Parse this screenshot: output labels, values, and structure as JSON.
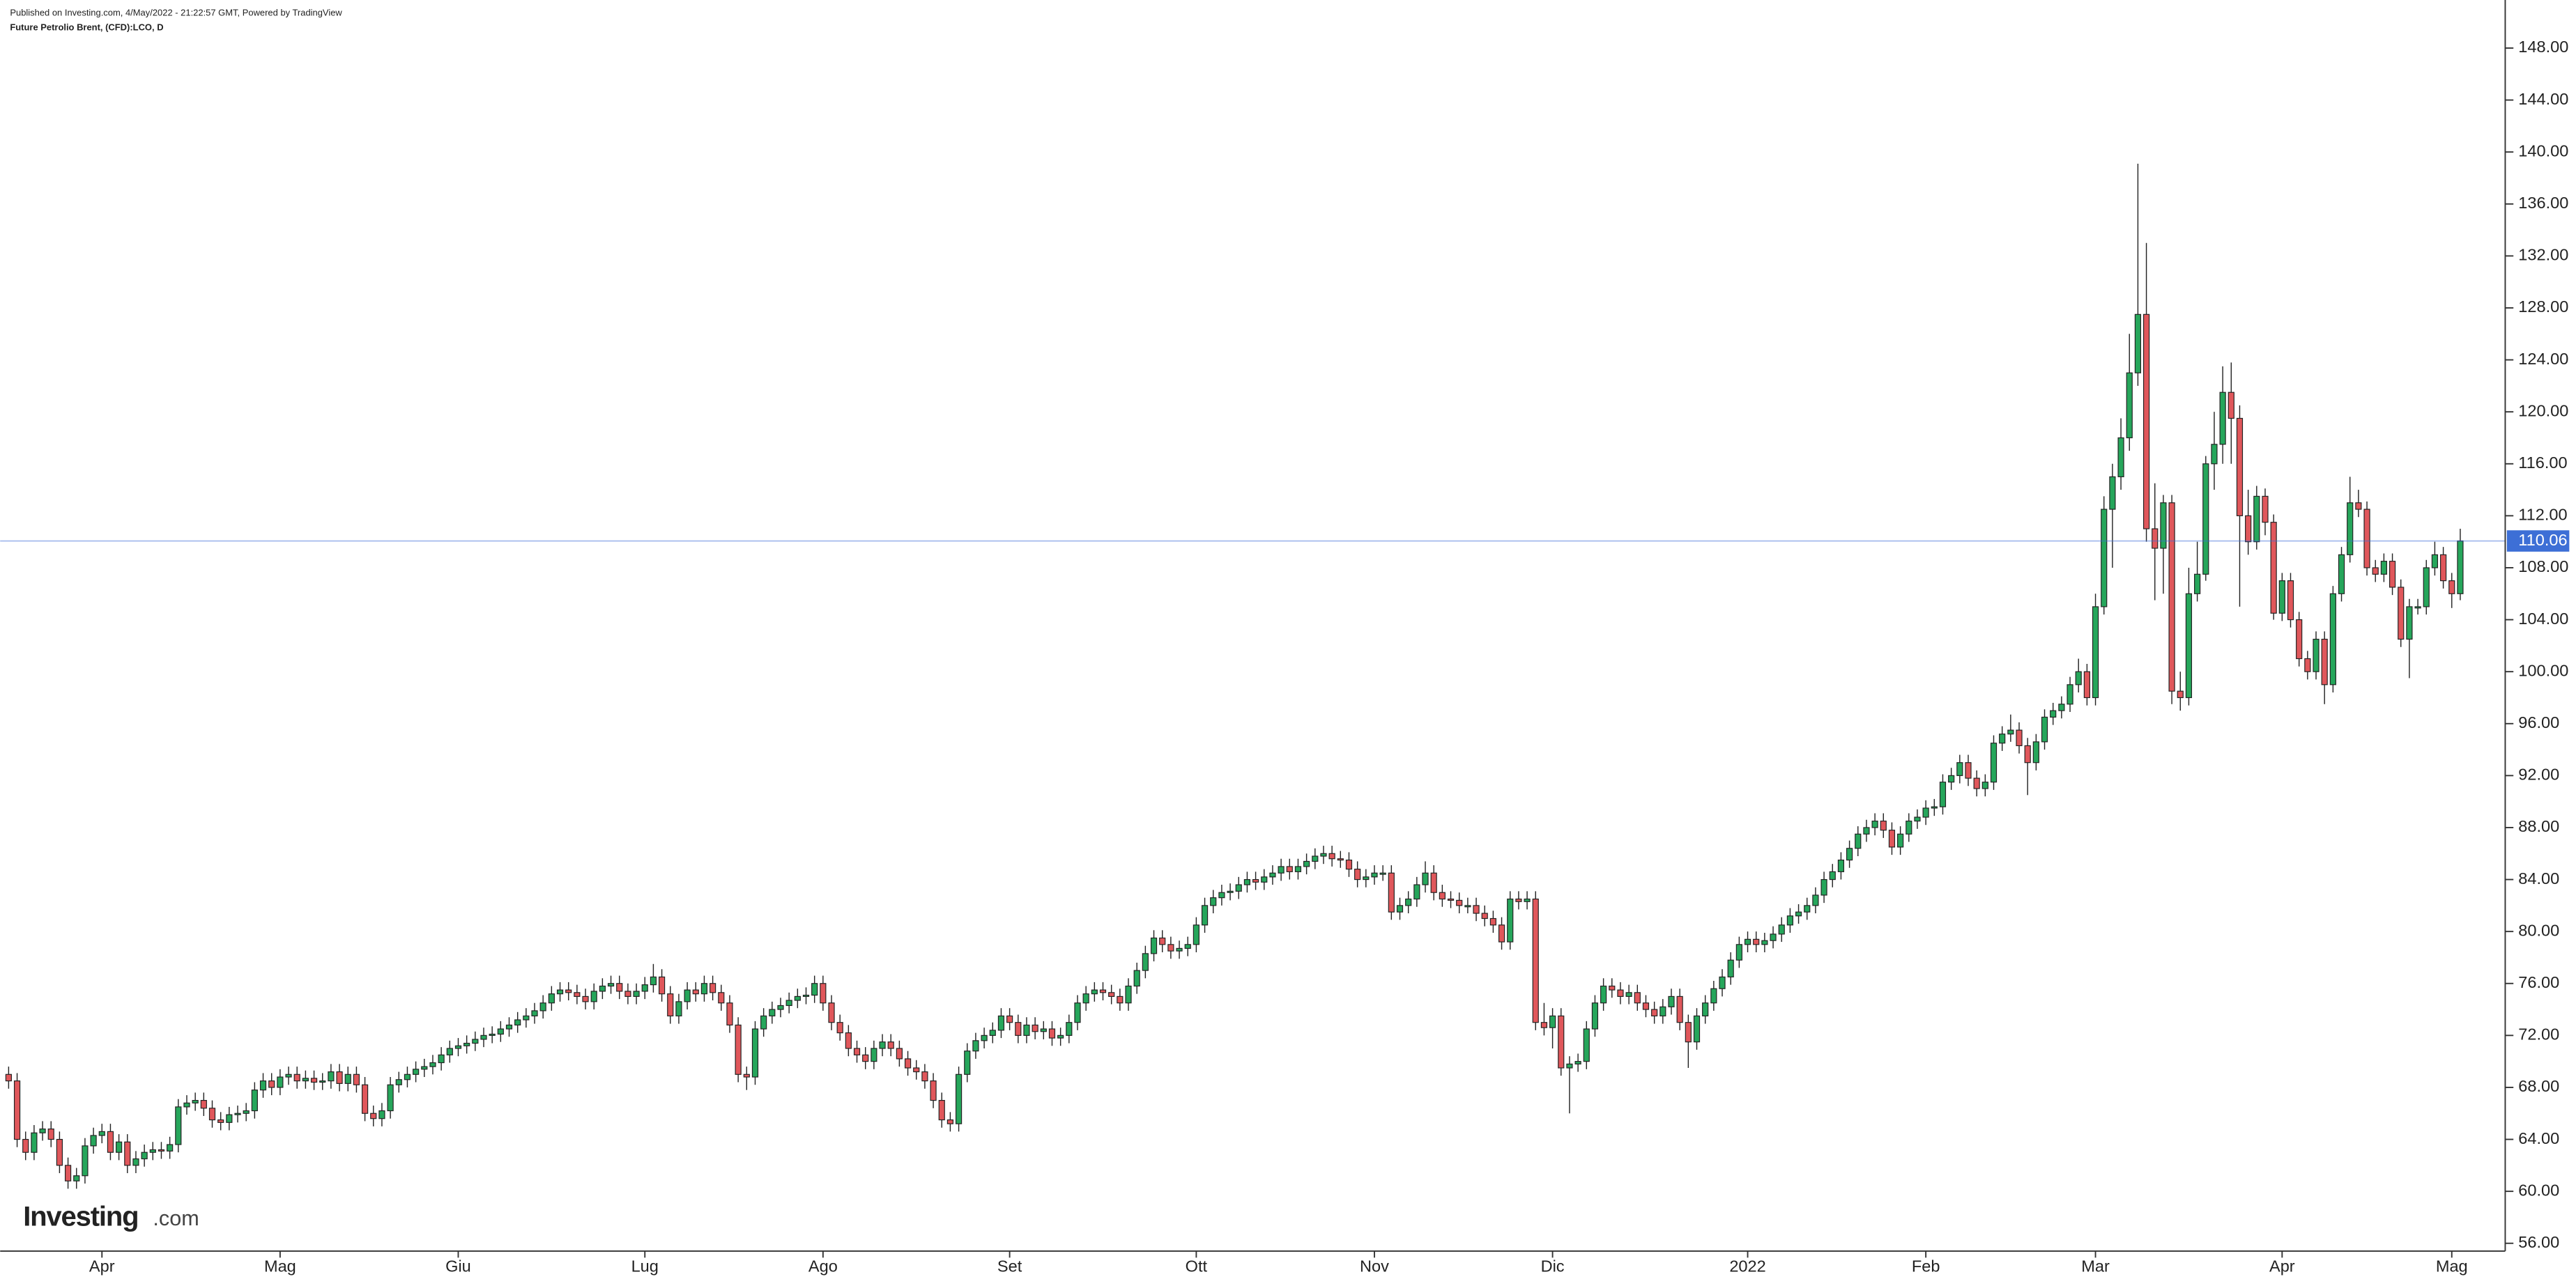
{
  "header": "Published on Investing.com, 4/May/2022 - 21:22:57 GMT, Powered by TradingView",
  "branding": {
    "brand": "Investing",
    "suffix": ".com"
  },
  "chart_data": {
    "type": "candlestick",
    "title": "Future Petrolio Brent, (CFD):LCO, D",
    "up_color": "#26a65b",
    "down_color": "#e0575b",
    "last_price_color": "#3d6fd6",
    "xlim": [
      -1,
      294.3
    ],
    "xticks": [
      {
        "value": 11,
        "label": "Apr"
      },
      {
        "value": 32,
        "label": "Mag"
      },
      {
        "value": 53,
        "label": "Giu"
      },
      {
        "value": 75,
        "label": "Lug"
      },
      {
        "value": 96,
        "label": "Ago"
      },
      {
        "value": 118,
        "label": "Set"
      },
      {
        "value": 140,
        "label": "Ott"
      },
      {
        "value": 161,
        "label": "Nov"
      },
      {
        "value": 182,
        "label": "Dic"
      },
      {
        "value": 205,
        "label": "2022"
      },
      {
        "value": 226,
        "label": "Feb"
      },
      {
        "value": 246,
        "label": "Mar"
      },
      {
        "value": 268,
        "label": "Apr"
      },
      {
        "value": 288,
        "label": "Mag"
      }
    ],
    "ylim": [
      55.4,
      151.7
    ],
    "yticks": [
      {
        "value": 56,
        "label": "56.00"
      },
      {
        "value": 60,
        "label": "60.00"
      },
      {
        "value": 64,
        "label": "64.00"
      },
      {
        "value": 68,
        "label": "68.00"
      },
      {
        "value": 72,
        "label": "72.00"
      },
      {
        "value": 76,
        "label": "76.00"
      },
      {
        "value": 80,
        "label": "80.00"
      },
      {
        "value": 84,
        "label": "84.00"
      },
      {
        "value": 88,
        "label": "88.00"
      },
      {
        "value": 92,
        "label": "92.00"
      },
      {
        "value": 96,
        "label": "96.00"
      },
      {
        "value": 100,
        "label": "100.00"
      },
      {
        "value": 104,
        "label": "104.00"
      },
      {
        "value": 108,
        "label": "108.00"
      },
      {
        "value": 112,
        "label": "112.00"
      },
      {
        "value": 116,
        "label": "116.00"
      },
      {
        "value": 120,
        "label": "120.00"
      },
      {
        "value": 124,
        "label": "124.00"
      },
      {
        "value": 128,
        "label": "128.00"
      },
      {
        "value": 132,
        "label": "132.00"
      },
      {
        "value": 136,
        "label": "136.00"
      },
      {
        "value": 140,
        "label": "140.00"
      },
      {
        "value": 144,
        "label": "144.00"
      },
      {
        "value": 148,
        "label": "148.00"
      }
    ],
    "open": [
      69.0,
      68.5,
      64.0,
      63.0,
      64.5,
      64.8,
      64.0,
      62.0,
      60.8,
      61.2,
      63.5,
      64.3,
      64.6,
      63.0,
      63.8,
      62.0,
      62.5,
      63.0,
      63.2,
      63.1,
      63.6,
      66.5,
      66.8,
      67.0,
      66.4,
      65.5,
      65.3,
      65.9,
      66.0,
      66.2,
      67.8,
      68.5,
      68.0,
      68.8,
      69.0,
      68.5,
      68.7,
      68.4,
      68.5,
      69.2,
      68.3,
      69.0,
      68.2,
      66.0,
      65.6,
      66.2,
      68.2,
      68.6,
      69.0,
      69.4,
      69.6,
      69.9,
      70.5,
      71.0,
      71.2,
      71.4,
      71.7,
      72.0,
      72.1,
      72.5,
      72.8,
      73.2,
      73.5,
      73.9,
      74.5,
      75.2,
      75.5,
      75.3,
      75.0,
      74.6,
      75.4,
      75.8,
      76.0,
      75.4,
      75.0,
      75.4,
      75.9,
      76.5,
      75.2,
      73.5,
      74.6,
      75.5,
      75.2,
      76.0,
      75.3,
      74.5,
      72.8,
      69.0,
      68.8,
      72.5,
      73.5,
      74.0,
      74.3,
      74.7,
      75.0,
      75.1,
      76.0,
      74.5,
      73.0,
      72.2,
      71.0,
      70.5,
      70.0,
      71.0,
      71.5,
      71.0,
      70.2,
      69.5,
      69.2,
      68.5,
      67.0,
      65.5,
      65.2,
      69.0,
      70.8,
      71.6,
      72.0,
      72.4,
      73.5,
      73.0,
      72.0,
      72.8,
      72.3,
      72.5,
      71.8,
      72.0,
      73.0,
      74.5,
      75.2,
      75.5,
      75.3,
      75.0,
      74.5,
      75.8,
      77.0,
      78.3,
      79.5,
      79.0,
      78.5,
      78.7,
      79.0,
      80.5,
      82.0,
      82.6,
      83.0,
      83.1,
      83.6,
      84.0,
      83.8,
      84.2,
      84.5,
      85.0,
      84.6,
      85.0,
      85.4,
      85.8,
      86.0,
      85.6,
      85.5,
      84.8,
      84.0,
      84.2,
      84.5,
      84.5,
      81.5,
      82.0,
      82.5,
      83.6,
      84.5,
      83.0,
      82.5,
      82.4,
      82.0,
      82.0,
      81.4,
      81.0,
      80.5,
      79.2,
      82.5,
      82.3,
      82.5,
      73.0,
      72.6,
      73.5,
      69.5,
      69.8,
      70.0,
      72.5,
      74.5,
      75.8,
      75.5,
      75.0,
      75.3,
      74.5,
      74.0,
      73.5,
      74.2,
      75.0,
      73.0,
      71.5,
      73.5,
      74.5,
      75.6,
      76.5,
      77.8,
      79.0,
      79.4,
      79.0,
      79.3,
      79.8,
      80.5,
      81.2,
      81.5,
      82.0,
      82.8,
      84.0,
      84.6,
      85.5,
      86.4,
      87.5,
      88.0,
      88.5,
      87.8,
      86.5,
      87.5,
      88.5,
      88.8,
      89.5,
      89.6,
      91.5,
      92.0,
      93.0,
      91.8,
      91.0,
      91.5,
      94.5,
      95.2,
      95.5,
      94.3,
      93.0,
      94.6,
      96.5,
      97.0,
      97.5,
      99.0,
      100.0,
      98.0,
      105.0,
      112.5,
      115.0,
      118.0,
      123.0,
      127.5,
      111.0,
      109.5,
      113.0,
      98.5,
      98.0,
      106.0,
      107.5,
      116.0,
      117.5,
      121.5,
      119.5,
      112.0,
      110.0,
      113.5,
      111.5,
      104.5,
      107.0,
      104.0,
      101.0,
      100.0,
      102.5,
      99.0,
      106.0,
      109.0,
      113.0,
      112.5,
      108.0,
      107.5,
      108.5,
      106.5,
      102.5,
      105.0,
      105.0,
      108.0,
      109.0,
      107.0,
      106.0
    ],
    "high": [
      69.6,
      69.1,
      64.6,
      65.1,
      65.4,
      65.4,
      64.6,
      62.6,
      61.8,
      64.1,
      64.9,
      65.2,
      65.2,
      64.4,
      64.4,
      63.1,
      63.6,
      63.8,
      63.8,
      64.2,
      67.1,
      67.4,
      67.6,
      67.6,
      67.0,
      66.1,
      66.5,
      66.6,
      66.8,
      68.4,
      69.1,
      69.1,
      69.4,
      69.6,
      69.6,
      69.3,
      69.3,
      69.1,
      69.8,
      69.8,
      69.6,
      69.6,
      68.8,
      66.6,
      66.8,
      68.8,
      69.2,
      69.6,
      70.0,
      70.2,
      70.5,
      71.1,
      71.6,
      71.8,
      72.0,
      72.3,
      72.6,
      72.7,
      73.1,
      73.4,
      73.8,
      74.1,
      74.5,
      75.1,
      75.8,
      76.1,
      76.1,
      75.9,
      75.6,
      76.0,
      76.4,
      76.6,
      76.6,
      76.0,
      76.0,
      76.5,
      77.5,
      77.1,
      75.8,
      75.2,
      76.1,
      76.1,
      76.6,
      76.6,
      75.9,
      75.1,
      73.4,
      69.6,
      73.1,
      74.1,
      74.6,
      74.9,
      75.3,
      75.6,
      75.7,
      76.6,
      76.6,
      75.1,
      73.6,
      72.8,
      71.6,
      71.1,
      71.6,
      72.1,
      72.1,
      71.6,
      70.8,
      70.1,
      69.8,
      69.1,
      67.6,
      66.1,
      69.6,
      71.4,
      72.2,
      72.6,
      73.0,
      74.1,
      74.1,
      73.6,
      73.4,
      73.4,
      73.1,
      73.1,
      72.6,
      73.6,
      75.1,
      75.8,
      76.1,
      76.1,
      75.9,
      75.6,
      76.4,
      77.6,
      78.9,
      80.1,
      80.1,
      79.6,
      79.3,
      79.6,
      81.1,
      82.6,
      83.2,
      83.6,
      83.7,
      84.2,
      84.6,
      84.6,
      84.8,
      85.1,
      85.6,
      85.6,
      85.6,
      86.0,
      86.4,
      86.6,
      86.6,
      86.2,
      86.1,
      85.4,
      84.8,
      85.1,
      85.1,
      85.1,
      82.6,
      83.1,
      84.2,
      85.4,
      85.1,
      83.6,
      83.1,
      83.0,
      82.6,
      82.6,
      82.0,
      81.6,
      81.1,
      83.1,
      83.1,
      83.1,
      83.1,
      74.5,
      74.1,
      74.1,
      70.4,
      70.6,
      73.1,
      75.1,
      76.4,
      76.4,
      76.1,
      75.9,
      75.9,
      75.1,
      74.6,
      74.8,
      75.6,
      75.6,
      73.6,
      74.1,
      75.1,
      76.2,
      77.1,
      78.4,
      79.6,
      80.0,
      80.0,
      79.9,
      80.4,
      81.1,
      81.8,
      82.1,
      82.6,
      83.4,
      84.6,
      85.2,
      86.1,
      87.0,
      88.1,
      88.6,
      89.1,
      89.1,
      88.4,
      88.1,
      89.1,
      89.4,
      90.1,
      90.2,
      92.1,
      92.6,
      93.6,
      93.6,
      92.4,
      92.1,
      95.1,
      95.8,
      96.7,
      96.1,
      94.9,
      95.2,
      97.1,
      97.6,
      98.1,
      99.6,
      101.0,
      100.6,
      106.0,
      113.5,
      116.0,
      119.5,
      126.0,
      139.1,
      133.0,
      114.5,
      113.6,
      113.6,
      100.0,
      108.0,
      110.0,
      116.6,
      120.0,
      123.5,
      123.8,
      120.5,
      114.0,
      114.3,
      114.1,
      112.1,
      107.6,
      107.6,
      104.6,
      101.6,
      103.1,
      103.1,
      106.6,
      109.6,
      115.0,
      114.0,
      113.1,
      108.6,
      109.1,
      109.1,
      107.1,
      105.6,
      105.6,
      108.6,
      110.0,
      109.6,
      107.6,
      111.0
    ],
    "low": [
      67.9,
      63.4,
      62.4,
      62.4,
      63.9,
      63.4,
      61.4,
      60.2,
      60.2,
      60.6,
      62.9,
      63.7,
      62.4,
      62.4,
      61.4,
      61.4,
      61.9,
      62.4,
      62.5,
      62.5,
      63.0,
      65.9,
      66.2,
      65.8,
      64.9,
      64.7,
      64.7,
      65.3,
      65.4,
      65.6,
      67.2,
      67.4,
      67.4,
      68.2,
      67.9,
      67.9,
      67.8,
      67.8,
      67.9,
      67.7,
      67.7,
      67.6,
      65.4,
      65.0,
      65.0,
      65.6,
      67.6,
      68.0,
      68.4,
      68.8,
      69.0,
      69.3,
      69.9,
      70.4,
      70.6,
      70.8,
      71.1,
      71.4,
      71.5,
      71.9,
      72.2,
      72.6,
      72.9,
      73.3,
      73.9,
      74.6,
      74.7,
      74.4,
      74.0,
      74.0,
      74.8,
      75.2,
      74.8,
      74.4,
      74.4,
      74.8,
      75.3,
      74.6,
      72.9,
      72.9,
      74.0,
      74.6,
      74.6,
      74.7,
      73.9,
      72.2,
      68.4,
      67.8,
      68.2,
      71.9,
      72.9,
      73.4,
      73.7,
      74.1,
      74.4,
      74.5,
      73.9,
      72.4,
      71.6,
      70.4,
      69.9,
      69.4,
      69.4,
      70.4,
      70.4,
      69.6,
      68.9,
      68.6,
      67.9,
      66.4,
      64.9,
      64.6,
      64.6,
      68.4,
      70.2,
      71.0,
      71.4,
      71.8,
      72.4,
      71.4,
      71.4,
      71.7,
      71.7,
      71.2,
      71.2,
      71.4,
      72.4,
      73.9,
      74.6,
      74.7,
      74.4,
      73.9,
      73.9,
      75.2,
      76.4,
      77.7,
      78.4,
      77.9,
      77.9,
      78.1,
      78.4,
      79.9,
      81.4,
      82.0,
      82.4,
      82.5,
      83.0,
      83.2,
      83.2,
      83.6,
      83.9,
      84.0,
      84.0,
      84.4,
      84.8,
      85.2,
      85.0,
      84.9,
      84.2,
      83.4,
      83.4,
      83.6,
      83.9,
      80.9,
      80.9,
      81.4,
      81.9,
      83.0,
      82.4,
      81.9,
      81.8,
      81.4,
      81.4,
      80.8,
      80.4,
      79.9,
      78.6,
      78.6,
      81.7,
      81.7,
      72.4,
      72.0,
      71.0,
      68.9,
      66.0,
      69.2,
      69.4,
      71.9,
      73.9,
      74.9,
      74.4,
      74.4,
      73.9,
      73.4,
      72.9,
      72.9,
      73.6,
      72.4,
      69.5,
      70.9,
      72.9,
      73.9,
      75.0,
      75.9,
      77.2,
      78.4,
      78.4,
      78.4,
      78.7,
      79.2,
      79.9,
      80.6,
      80.9,
      81.4,
      82.2,
      83.4,
      84.0,
      84.9,
      85.8,
      86.9,
      87.4,
      87.2,
      85.9,
      85.9,
      86.9,
      87.9,
      88.2,
      88.9,
      89.0,
      90.9,
      91.4,
      91.2,
      90.4,
      90.4,
      90.9,
      93.9,
      94.6,
      93.7,
      90.5,
      92.4,
      94.0,
      95.9,
      96.4,
      96.9,
      98.4,
      97.4,
      97.4,
      104.4,
      108.0,
      114.0,
      117.0,
      122.0,
      110.0,
      105.5,
      106.0,
      97.5,
      97.0,
      97.4,
      105.4,
      107.0,
      114.0,
      116.0,
      116.0,
      105.0,
      109.0,
      109.4,
      110.5,
      104.0,
      103.9,
      103.4,
      100.4,
      99.4,
      99.4,
      97.5,
      98.4,
      105.4,
      108.4,
      111.9,
      107.4,
      106.9,
      106.9,
      105.9,
      101.9,
      99.5,
      104.4,
      104.4,
      107.4,
      106.4,
      104.9,
      105.5
    ],
    "close": [
      68.5,
      64.0,
      63.0,
      64.5,
      64.8,
      64.0,
      62.0,
      60.8,
      61.2,
      63.5,
      64.3,
      64.6,
      63.0,
      63.8,
      62.0,
      62.5,
      63.0,
      63.2,
      63.1,
      63.6,
      66.5,
      66.8,
      67.0,
      66.4,
      65.5,
      65.3,
      65.9,
      66.0,
      66.2,
      67.8,
      68.5,
      68.0,
      68.8,
      69.0,
      68.5,
      68.7,
      68.4,
      68.5,
      69.2,
      68.3,
      69.0,
      68.2,
      66.0,
      65.6,
      66.2,
      68.2,
      68.6,
      69.0,
      69.4,
      69.6,
      69.9,
      70.5,
      71.0,
      71.2,
      71.4,
      71.7,
      72.0,
      72.1,
      72.5,
      72.8,
      73.2,
      73.5,
      73.9,
      74.5,
      75.2,
      75.5,
      75.3,
      75.0,
      74.6,
      75.4,
      75.8,
      76.0,
      75.4,
      75.0,
      75.4,
      75.9,
      76.5,
      75.2,
      73.5,
      74.6,
      75.5,
      75.2,
      76.0,
      75.3,
      74.5,
      72.8,
      69.0,
      68.8,
      72.5,
      73.5,
      74.0,
      74.3,
      74.7,
      75.0,
      75.1,
      76.0,
      74.5,
      73.0,
      72.2,
      71.0,
      70.5,
      70.0,
      71.0,
      71.5,
      71.0,
      70.2,
      69.5,
      69.2,
      68.5,
      67.0,
      65.5,
      65.2,
      69.0,
      70.8,
      71.6,
      72.0,
      72.4,
      73.5,
      73.0,
      72.0,
      72.8,
      72.3,
      72.5,
      71.8,
      72.0,
      73.0,
      74.5,
      75.2,
      75.5,
      75.3,
      75.0,
      74.5,
      75.8,
      77.0,
      78.3,
      79.5,
      79.0,
      78.5,
      78.7,
      79.0,
      80.5,
      82.0,
      82.6,
      83.0,
      83.1,
      83.6,
      84.0,
      83.8,
      84.2,
      84.5,
      85.0,
      84.6,
      85.0,
      85.4,
      85.8,
      86.0,
      85.6,
      85.5,
      84.8,
      84.0,
      84.2,
      84.5,
      84.5,
      81.5,
      82.0,
      82.5,
      83.6,
      84.5,
      83.0,
      82.5,
      82.4,
      82.0,
      82.0,
      81.4,
      81.0,
      80.5,
      79.2,
      82.5,
      82.3,
      82.5,
      73.0,
      72.6,
      73.5,
      69.5,
      69.8,
      70.0,
      72.5,
      74.5,
      75.8,
      75.5,
      75.0,
      75.3,
      74.5,
      74.0,
      73.5,
      74.2,
      75.0,
      73.0,
      71.5,
      73.5,
      74.5,
      75.6,
      76.5,
      77.8,
      79.0,
      79.4,
      79.0,
      79.3,
      79.8,
      80.5,
      81.2,
      81.5,
      82.0,
      82.8,
      84.0,
      84.6,
      85.5,
      86.4,
      87.5,
      88.0,
      88.5,
      87.8,
      86.5,
      87.5,
      88.5,
      88.8,
      89.5,
      89.6,
      91.5,
      92.0,
      93.0,
      91.8,
      91.0,
      91.5,
      94.5,
      95.2,
      95.5,
      94.3,
      93.0,
      94.6,
      96.5,
      97.0,
      97.5,
      99.0,
      100.0,
      98.0,
      105.0,
      112.5,
      115.0,
      118.0,
      123.0,
      127.5,
      111.0,
      109.5,
      113.0,
      98.5,
      98.0,
      106.0,
      107.5,
      116.0,
      117.5,
      121.5,
      119.5,
      112.0,
      110.0,
      113.5,
      111.5,
      104.5,
      107.0,
      104.0,
      101.0,
      100.0,
      102.5,
      99.0,
      106.0,
      109.0,
      113.0,
      112.5,
      108.0,
      107.5,
      108.5,
      106.5,
      102.5,
      105.0,
      105.0,
      108.0,
      109.0,
      107.0,
      106.0,
      110.06
    ]
  }
}
